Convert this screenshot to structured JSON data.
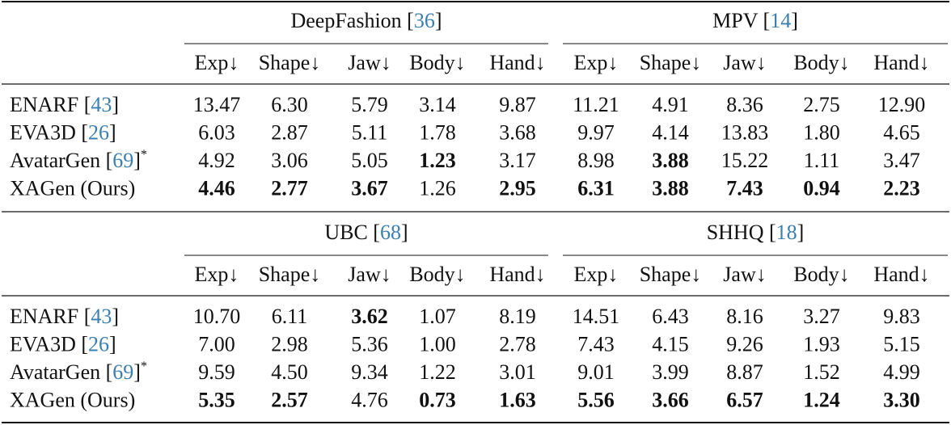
{
  "blocks": [
    {
      "groups": [
        [
          "DeepFashion [",
          "36",
          "]"
        ],
        [
          "MPV [",
          "14",
          "]"
        ]
      ],
      "columns": [
        "Exp↓",
        "Shape↓",
        "Jaw↓",
        "Body↓",
        "Hand↓",
        "Exp↓",
        "Shape↓",
        "Jaw↓",
        "Body↓",
        "Hand↓"
      ],
      "rows": [
        {
          "method": [
            "ENARF [",
            "43",
            "]"
          ],
          "values": [
            "13.47",
            "6.30",
            "5.79",
            "3.14",
            "9.87",
            "11.21",
            "4.91",
            "8.36",
            "2.75",
            "12.90"
          ],
          "bold": []
        },
        {
          "method": [
            "EVA3D [",
            "26",
            "]"
          ],
          "values": [
            "6.03",
            "2.87",
            "5.11",
            "1.78",
            "3.68",
            "9.97",
            "4.14",
            "13.83",
            "1.80",
            "4.65"
          ],
          "bold": []
        },
        {
          "method": [
            "AvatarGen [",
            "69",
            "]",
            "*"
          ],
          "values": [
            "4.92",
            "3.06",
            "5.05",
            "1.23",
            "3.17",
            "8.98",
            "3.88",
            "15.22",
            "1.11",
            "3.47"
          ],
          "bold": [
            3,
            6
          ]
        },
        {
          "method": [
            "XAGen (Ours)"
          ],
          "values": [
            "4.46",
            "2.77",
            "3.67",
            "1.26",
            "2.95",
            "6.31",
            "3.88",
            "7.43",
            "0.94",
            "2.23"
          ],
          "bold": [
            0,
            1,
            2,
            4,
            5,
            6,
            7,
            8,
            9
          ]
        }
      ]
    },
    {
      "groups": [
        [
          "UBC [",
          "68",
          "]"
        ],
        [
          "SHHQ [",
          "18",
          "]"
        ]
      ],
      "columns": [
        "Exp↓",
        "Shape↓",
        "Jaw↓",
        "Body↓",
        "Hand↓",
        "Exp↓",
        "Shape↓",
        "Jaw↓",
        "Body↓",
        "Hand↓"
      ],
      "rows": [
        {
          "method": [
            "ENARF [",
            "43",
            "]"
          ],
          "values": [
            "10.70",
            "6.11",
            "3.62",
            "1.07",
            "8.19",
            "14.51",
            "6.43",
            "8.16",
            "3.27",
            "9.83"
          ],
          "bold": [
            2
          ]
        },
        {
          "method": [
            "EVA3D [",
            "26",
            "]"
          ],
          "values": [
            "7.00",
            "2.98",
            "5.36",
            "1.00",
            "2.78",
            "7.43",
            "4.15",
            "9.26",
            "1.93",
            "5.15"
          ],
          "bold": []
        },
        {
          "method": [
            "AvatarGen [",
            "69",
            "]",
            "*"
          ],
          "values": [
            "9.59",
            "4.50",
            "9.34",
            "1.22",
            "3.01",
            "9.01",
            "3.99",
            "8.87",
            "1.52",
            "4.99"
          ],
          "bold": []
        },
        {
          "method": [
            "XAGen (Ours)"
          ],
          "values": [
            "5.35",
            "2.57",
            "4.76",
            "0.73",
            "1.63",
            "5.56",
            "3.66",
            "6.57",
            "1.24",
            "3.30"
          ],
          "bold": [
            0,
            1,
            3,
            4,
            5,
            6,
            7,
            8,
            9
          ]
        }
      ]
    }
  ]
}
